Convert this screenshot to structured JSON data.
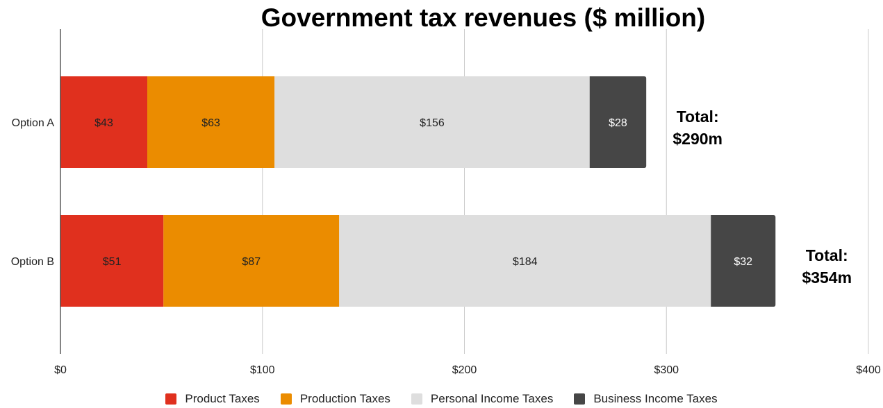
{
  "chart_data": {
    "type": "bar",
    "orientation": "horizontal",
    "stacked": true,
    "title": "Government tax revenues ($ million)",
    "categories": [
      "Option A",
      "Option B"
    ],
    "series": [
      {
        "name": "Product Taxes",
        "color": "#e0301e",
        "values": [
          43,
          51
        ],
        "labels": [
          "$43",
          "$51"
        ],
        "label_color": "#222222"
      },
      {
        "name": "Production Taxes",
        "color": "#eb8c00",
        "values": [
          63,
          87
        ],
        "labels": [
          "$63",
          "$87"
        ],
        "label_color": "#222222"
      },
      {
        "name": "Personal Income Taxes",
        "color": "#dedede",
        "values": [
          156,
          184
        ],
        "labels": [
          "$156",
          "$184"
        ],
        "label_color": "#222222"
      },
      {
        "name": "Business Income Taxes",
        "color": "#464646",
        "values": [
          28,
          32
        ],
        "labels": [
          "$28",
          "$32"
        ],
        "label_color": "#ffffff"
      }
    ],
    "totals": [
      {
        "line1": "Total:",
        "line2": "$290m"
      },
      {
        "line1": "Total:",
        "line2": "$354m"
      }
    ],
    "xlim": [
      0,
      400
    ],
    "xticks": [
      0,
      100,
      200,
      300,
      400
    ],
    "xtick_labels": [
      "$0",
      "$100",
      "$200",
      "$300",
      "$400"
    ],
    "grid": true,
    "legend_position": "bottom"
  }
}
